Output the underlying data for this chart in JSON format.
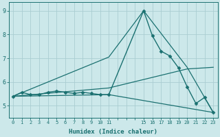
{
  "background_color": "#cce8ea",
  "grid_color": "#aacdd2",
  "line_color": "#1a7070",
  "xlabel": "Humidex (Indice chaleur)",
  "xlim": [
    -0.5,
    23.5
  ],
  "ylim": [
    4.6,
    9.35
  ],
  "xtick_labels": [
    "0",
    "1",
    "2",
    "3",
    "4",
    "5",
    "6",
    "7",
    "8",
    "9",
    "1011",
    "",
    "15",
    "16",
    "17",
    "18",
    "19",
    "20",
    "21",
    "2223"
  ],
  "xtick_positions": [
    0,
    1,
    2,
    3,
    4,
    5,
    6,
    7,
    8,
    9,
    10,
    11,
    12,
    13,
    14,
    15,
    16,
    17,
    18,
    19,
    20,
    21,
    22,
    23
  ],
  "xtick_show": [
    0,
    1,
    2,
    3,
    4,
    5,
    6,
    7,
    8,
    9,
    10,
    11,
    15,
    16,
    17,
    18,
    19,
    20,
    21,
    22,
    23
  ],
  "yticks": [
    5,
    6,
    7,
    8,
    9
  ],
  "series": [
    {
      "x": [
        0,
        1,
        2,
        3,
        4,
        5,
        6,
        7,
        8,
        9,
        10,
        11,
        15,
        16,
        17,
        18,
        19,
        20,
        21,
        22,
        23
      ],
      "y": [
        5.4,
        5.57,
        5.47,
        5.47,
        5.57,
        5.62,
        5.57,
        5.52,
        5.57,
        5.52,
        5.47,
        5.47,
        9.0,
        7.95,
        7.3,
        7.1,
        6.6,
        5.8,
        5.1,
        5.35,
        4.72
      ],
      "marker": "D",
      "markersize": 2.5,
      "linewidth": 1.0
    },
    {
      "x": [
        0,
        11,
        23
      ],
      "y": [
        5.4,
        5.47,
        4.72
      ],
      "marker": null,
      "linewidth": 0.9
    },
    {
      "x": [
        0,
        11,
        20,
        23
      ],
      "y": [
        5.4,
        5.75,
        6.55,
        6.62
      ],
      "marker": null,
      "linewidth": 0.9
    },
    {
      "x": [
        0,
        11,
        15,
        20,
        23
      ],
      "y": [
        5.4,
        7.05,
        9.0,
        6.62,
        4.72
      ],
      "marker": null,
      "linewidth": 0.9
    }
  ]
}
